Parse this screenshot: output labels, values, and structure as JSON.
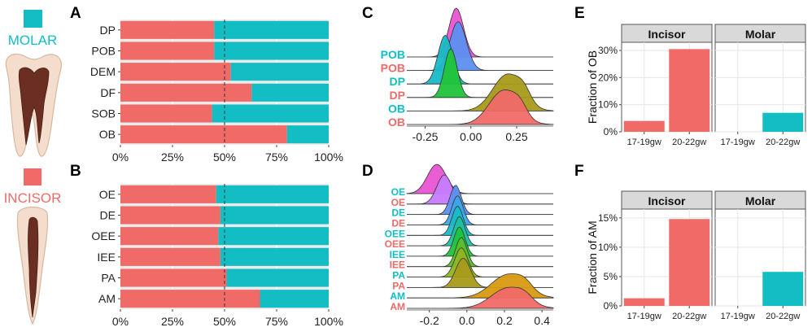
{
  "colors": {
    "molar": "#12BEC4",
    "incisor": "#F06A67",
    "panel_bg": "#EBEBEB",
    "strip_bg": "#D9D9D9"
  },
  "legend": {
    "molar_label": "MOLAR",
    "incisor_label": "INCISOR"
  },
  "panel_letters": {
    "a": "A",
    "b": "B",
    "c": "C",
    "d": "D",
    "e": "E",
    "f": "F"
  },
  "chart_data": [
    {
      "id": "A",
      "type": "bar",
      "stacked": true,
      "orientation": "horizontal",
      "categories": [
        "DP",
        "POB",
        "DEM",
        "DF",
        "SOB",
        "OB"
      ],
      "series": [
        {
          "name": "INCISOR",
          "values": [
            0.45,
            0.45,
            0.53,
            0.63,
            0.44,
            0.8
          ]
        },
        {
          "name": "MOLAR",
          "values": [
            0.55,
            0.55,
            0.47,
            0.37,
            0.56,
            0.2
          ]
        }
      ],
      "xlim": [
        0,
        1
      ],
      "reference_line": 0.5,
      "tick_labels": [
        "0%",
        "25%",
        "50%",
        "75%",
        "100%"
      ]
    },
    {
      "id": "B",
      "type": "bar",
      "stacked": true,
      "orientation": "horizontal",
      "categories": [
        "OE",
        "DE",
        "OEE",
        "IEE",
        "PA",
        "AM"
      ],
      "series": [
        {
          "name": "INCISOR",
          "values": [
            0.46,
            0.48,
            0.47,
            0.48,
            0.51,
            0.67
          ]
        },
        {
          "name": "MOLAR",
          "values": [
            0.54,
            0.52,
            0.53,
            0.52,
            0.49,
            0.33
          ]
        }
      ],
      "xlim": [
        0,
        1
      ],
      "reference_line": 0.5,
      "tick_labels": [
        "0%",
        "25%",
        "50%",
        "75%",
        "100%"
      ]
    },
    {
      "id": "C",
      "type": "ridgeline",
      "rows": [
        {
          "label": "POB",
          "label_color": "molar",
          "fill": "#E855D2",
          "peak": -0.08,
          "sd": 0.04,
          "height": 1.0
        },
        {
          "label": "POB",
          "label_color": "incisor",
          "fill": "#5C8FF0",
          "peak": -0.07,
          "sd": 0.045,
          "height": 1.0
        },
        {
          "label": "DP",
          "label_color": "molar",
          "fill": "#19B9C6",
          "peak": -0.14,
          "sd": 0.04,
          "height": 1.0
        },
        {
          "label": "DP",
          "label_color": "incisor",
          "fill": "#20C43A",
          "peak": -0.11,
          "sd": 0.035,
          "height": 1.0
        },
        {
          "label": "OB",
          "label_color": "molar",
          "fill": "#A89A1A",
          "peak": 0.2,
          "sd": 0.08,
          "height": 0.75
        },
        {
          "label": "OB",
          "label_color": "incisor",
          "fill": "#F06A67",
          "peak": 0.18,
          "sd": 0.08,
          "height": 0.7
        }
      ],
      "xlim": [
        -0.35,
        0.45
      ],
      "ticks": [
        -0.25,
        0.0,
        0.25
      ],
      "tick_labels": [
        "-0.25",
        "0.00",
        "0.25"
      ]
    },
    {
      "id": "D",
      "type": "ridgeline",
      "rows": [
        {
          "label": "OE",
          "label_color": "molar",
          "fill": "#E855D2",
          "peak": -0.16,
          "sd": 0.05,
          "height": 1.0
        },
        {
          "label": "OE",
          "label_color": "incisor",
          "fill": "#C77CFF",
          "peak": -0.12,
          "sd": 0.04,
          "height": 1.0
        },
        {
          "label": "DE",
          "label_color": "molar",
          "fill": "#5C8FF0",
          "peak": -0.06,
          "sd": 0.03,
          "height": 1.0
        },
        {
          "label": "DE",
          "label_color": "incisor",
          "fill": "#3BA7E8",
          "peak": -0.05,
          "sd": 0.03,
          "height": 1.0
        },
        {
          "label": "OEE",
          "label_color": "molar",
          "fill": "#19B9C6",
          "peak": -0.05,
          "sd": 0.03,
          "height": 1.0
        },
        {
          "label": "OEE",
          "label_color": "incisor",
          "fill": "#1FC0A0",
          "peak": -0.04,
          "sd": 0.03,
          "height": 1.0
        },
        {
          "label": "IEE",
          "label_color": "molar",
          "fill": "#20C43A",
          "peak": -0.04,
          "sd": 0.03,
          "height": 1.0
        },
        {
          "label": "IEE",
          "label_color": "incisor",
          "fill": "#5BBF2A",
          "peak": -0.03,
          "sd": 0.03,
          "height": 1.0
        },
        {
          "label": "PA",
          "label_color": "molar",
          "fill": "#8FB520",
          "peak": -0.03,
          "sd": 0.035,
          "height": 1.0
        },
        {
          "label": "PA",
          "label_color": "incisor",
          "fill": "#A89A1A",
          "peak": -0.02,
          "sd": 0.04,
          "height": 1.0
        },
        {
          "label": "AM",
          "label_color": "molar",
          "fill": "#D89A10",
          "peak": 0.22,
          "sd": 0.09,
          "height": 0.8
        },
        {
          "label": "AM",
          "label_color": "incisor",
          "fill": "#F06A67",
          "peak": 0.22,
          "sd": 0.09,
          "height": 0.7
        }
      ],
      "xlim": [
        -0.32,
        0.46
      ],
      "ticks": [
        -0.2,
        0.0,
        0.2,
        0.4
      ],
      "tick_labels": [
        "-0.2",
        "0.0",
        "0.2",
        "0.4"
      ]
    },
    {
      "id": "E",
      "type": "bar",
      "facets": [
        "Incisor",
        "Molar"
      ],
      "categories": [
        "17-19gw",
        "20-22gw"
      ],
      "values": {
        "Incisor": [
          0.04,
          0.305
        ],
        "Molar": [
          0.0,
          0.07
        ]
      },
      "ylabel": "Fraction of OB",
      "ylim": [
        0,
        0.33
      ],
      "ticks": [
        0,
        0.1,
        0.2,
        0.3
      ],
      "tick_labels": [
        "0%",
        "10%",
        "20%",
        "30%"
      ]
    },
    {
      "id": "F",
      "type": "bar",
      "facets": [
        "Incisor",
        "Molar"
      ],
      "categories": [
        "17-19gw",
        "20-22gw"
      ],
      "values": {
        "Incisor": [
          0.013,
          0.148
        ],
        "Molar": [
          0.0,
          0.058
        ]
      },
      "ylabel": "Fraction of AM",
      "ylim": [
        0,
        0.165
      ],
      "ticks": [
        0,
        0.05,
        0.1,
        0.15
      ],
      "tick_labels": [
        "0%",
        "5%",
        "10%",
        "15%"
      ]
    }
  ]
}
